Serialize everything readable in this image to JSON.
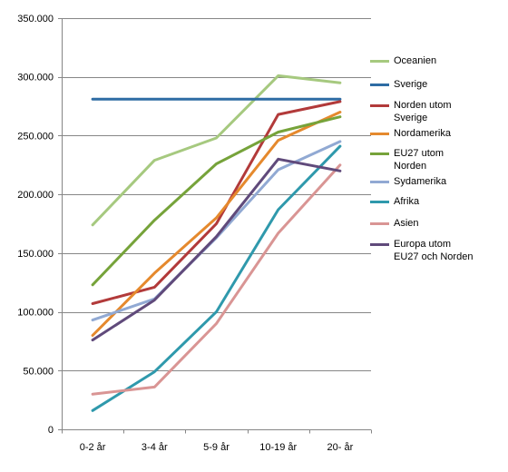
{
  "chart_data": {
    "type": "line",
    "title": "",
    "xlabel": "",
    "ylabel": "",
    "categories": [
      "0-2 år",
      "3-4 år",
      "5-9 år",
      "10-19 år",
      "20- år"
    ],
    "ylim": [
      0,
      350000
    ],
    "yticks": [
      0,
      50000,
      100000,
      150000,
      200000,
      250000,
      300000,
      350000
    ],
    "ytick_labels": [
      "0",
      "50.000",
      "100.000",
      "150.000",
      "200.000",
      "250.000",
      "300.000",
      "350.000"
    ],
    "grid": "horizontal",
    "legend_position": "right",
    "series": [
      {
        "name": "Oceanien",
        "color": "#a6c97f",
        "values": [
          174000,
          229000,
          248000,
          301000,
          295000
        ]
      },
      {
        "name": "Sverige",
        "color": "#2e6ca4",
        "values": [
          281000,
          281000,
          281000,
          281000,
          281000
        ]
      },
      {
        "name": "Norden utom Sverige",
        "color": "#b23a3a",
        "values": [
          107000,
          121000,
          175000,
          268000,
          279000
        ]
      },
      {
        "name": "Nordamerika",
        "color": "#e5892d",
        "values": [
          80000,
          133000,
          180000,
          246000,
          270000
        ]
      },
      {
        "name": "EU27 utom Norden",
        "color": "#76a33a",
        "values": [
          123000,
          178000,
          226000,
          253000,
          266000
        ]
      },
      {
        "name": "Sydamerika",
        "color": "#91a9d3",
        "values": [
          93000,
          111000,
          163000,
          221000,
          245000
        ]
      },
      {
        "name": "Afrika",
        "color": "#2f99ac",
        "values": [
          16000,
          49000,
          100000,
          187000,
          241000
        ]
      },
      {
        "name": "Asien",
        "color": "#d99594",
        "values": [
          30000,
          36000,
          90000,
          167000,
          225000
        ]
      },
      {
        "name": "Europa utom EU27 och Norden",
        "color": "#604a7b",
        "values": [
          76000,
          110000,
          164000,
          230000,
          220000
        ]
      }
    ]
  },
  "legend": {
    "items": [
      {
        "lines": [
          "Oceanien"
        ],
        "color": "#a6c97f"
      },
      {
        "lines": [
          "Sverige"
        ],
        "color": "#2e6ca4"
      },
      {
        "lines": [
          "Norden utom",
          "Sverige"
        ],
        "color": "#b23a3a"
      },
      {
        "lines": [
          "Nordamerika"
        ],
        "color": "#e5892d"
      },
      {
        "lines": [
          "EU27 utom",
          "Norden"
        ],
        "color": "#76a33a"
      },
      {
        "lines": [
          "Sydamerika"
        ],
        "color": "#91a9d3"
      },
      {
        "lines": [
          "Afrika"
        ],
        "color": "#2f99ac"
      },
      {
        "lines": [
          "Asien"
        ],
        "color": "#d99594"
      },
      {
        "lines": [
          "Europa utom",
          "EU27 och Norden"
        ],
        "color": "#604a7b"
      }
    ]
  }
}
